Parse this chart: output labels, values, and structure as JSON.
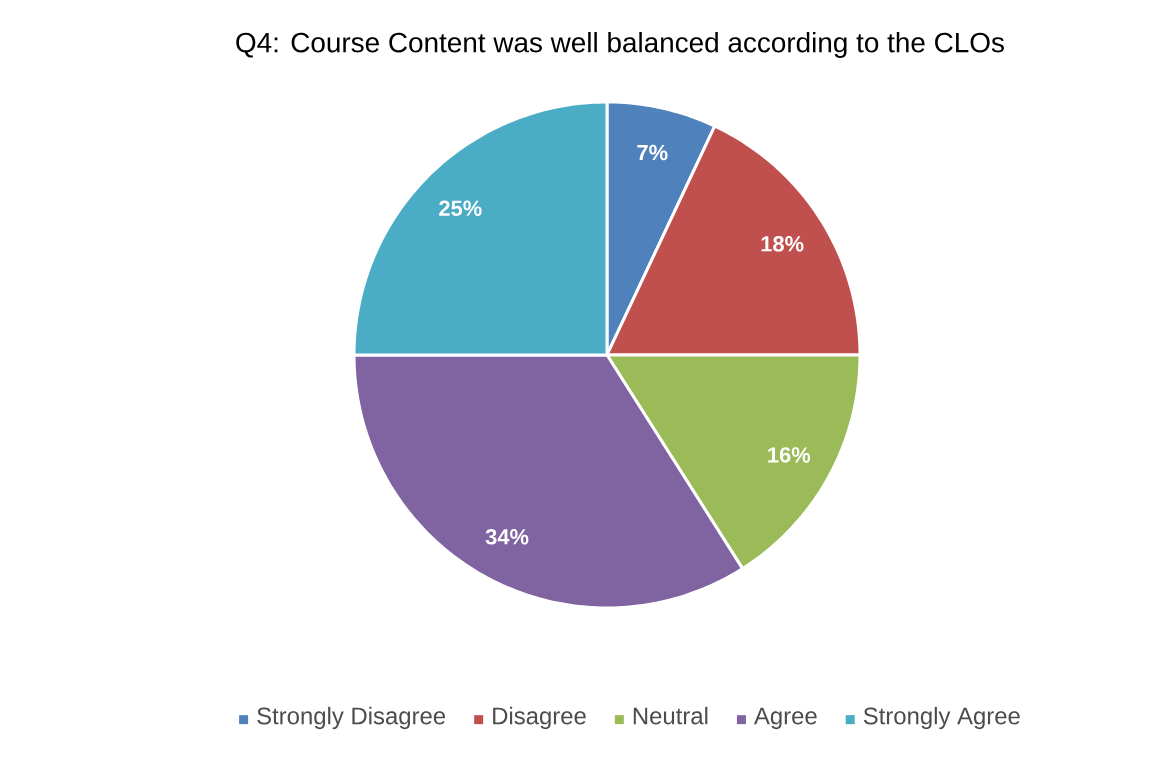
{
  "chart_data": {
    "type": "pie",
    "title": "Q4: Course Content was well balanced according to the CLOs",
    "categories": [
      "Strongly Disagree",
      "Disagree",
      "Neutral",
      "Agree",
      "Strongly Agree"
    ],
    "values": [
      7,
      18,
      16,
      34,
      25
    ],
    "value_labels": [
      "7%",
      "18%",
      "16%",
      "34%",
      "25%"
    ],
    "colors": [
      "#4f81bd",
      "#c0504d",
      "#9bbb59",
      "#8064a2",
      "#4bacc6"
    ],
    "legend": "bottom"
  }
}
